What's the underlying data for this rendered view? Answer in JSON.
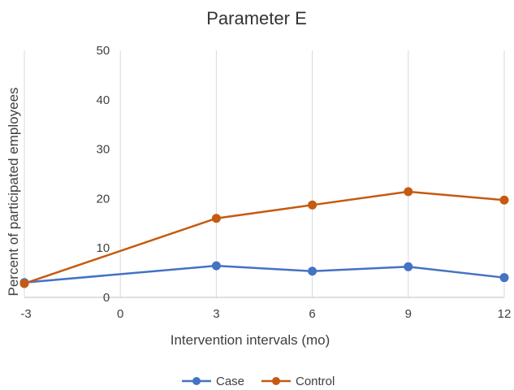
{
  "chart_data": {
    "type": "line",
    "title": "Parameter E",
    "xlabel": "Intervention intervals (mo)",
    "ylabel": "Percent  of participated employees",
    "x": [
      -3,
      3,
      6,
      9,
      12
    ],
    "x_ticks": [
      "-3",
      "0",
      "3",
      "6",
      "9",
      "12"
    ],
    "y_ticks": [
      "0",
      "10",
      "20",
      "30",
      "40",
      "50"
    ],
    "xlim": [
      -3,
      12
    ],
    "ylim": [
      0,
      50
    ],
    "grid": "vertical",
    "legend_position": "bottom",
    "series": [
      {
        "name": "Case",
        "color": "#4472C4",
        "values": [
          3.0,
          6.4,
          5.3,
          6.2,
          4.0
        ]
      },
      {
        "name": "Control",
        "color": "#C55A11",
        "values": [
          2.8,
          16.0,
          18.7,
          21.4,
          19.7
        ]
      }
    ]
  }
}
